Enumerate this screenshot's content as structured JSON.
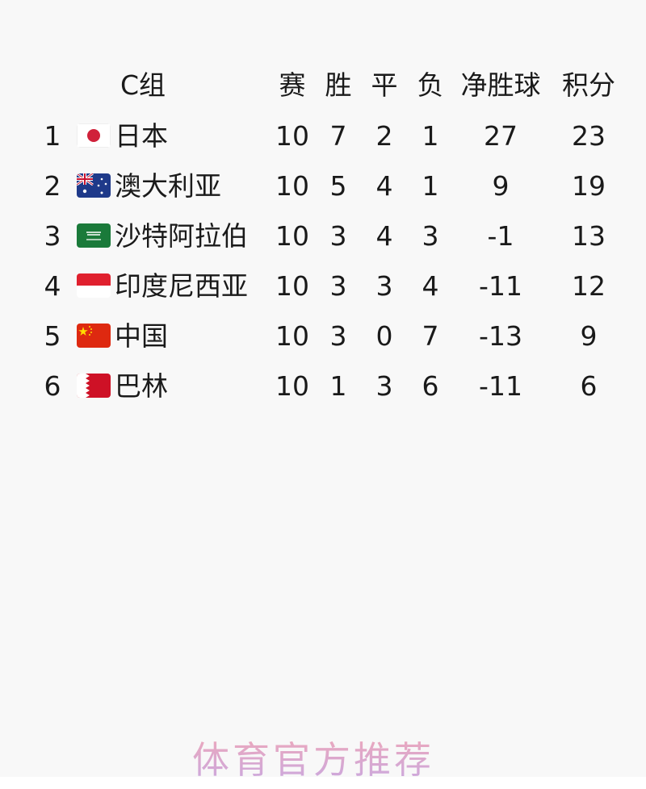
{
  "table": {
    "group_label": "C组",
    "columns": [
      "赛",
      "胜",
      "平",
      "负",
      "净胜球",
      "积分"
    ],
    "rows": [
      {
        "rank": "1",
        "flag": "japan-flag",
        "team": "日本",
        "played": "10",
        "won": "7",
        "drawn": "2",
        "lost": "1",
        "gd": "27",
        "pts": "23"
      },
      {
        "rank": "2",
        "flag": "australia-flag",
        "team": "澳大利亚",
        "played": "10",
        "won": "5",
        "drawn": "4",
        "lost": "1",
        "gd": "9",
        "pts": "19"
      },
      {
        "rank": "3",
        "flag": "saudi-arabia-flag",
        "team": "沙特阿拉伯",
        "played": "10",
        "won": "3",
        "drawn": "4",
        "lost": "3",
        "gd": "-1",
        "pts": "13"
      },
      {
        "rank": "4",
        "flag": "indonesia-flag",
        "team": "印度尼西亚",
        "played": "10",
        "won": "3",
        "drawn": "3",
        "lost": "4",
        "gd": "-11",
        "pts": "12"
      },
      {
        "rank": "5",
        "flag": "china-flag",
        "team": "中国",
        "played": "10",
        "won": "3",
        "drawn": "0",
        "lost": "7",
        "gd": "-13",
        "pts": "9"
      },
      {
        "rank": "6",
        "flag": "bahrain-flag",
        "team": "巴林",
        "played": "10",
        "won": "1",
        "drawn": "3",
        "lost": "6",
        "gd": "-11",
        "pts": "6"
      }
    ]
  },
  "watermark": "体育官方推荐"
}
